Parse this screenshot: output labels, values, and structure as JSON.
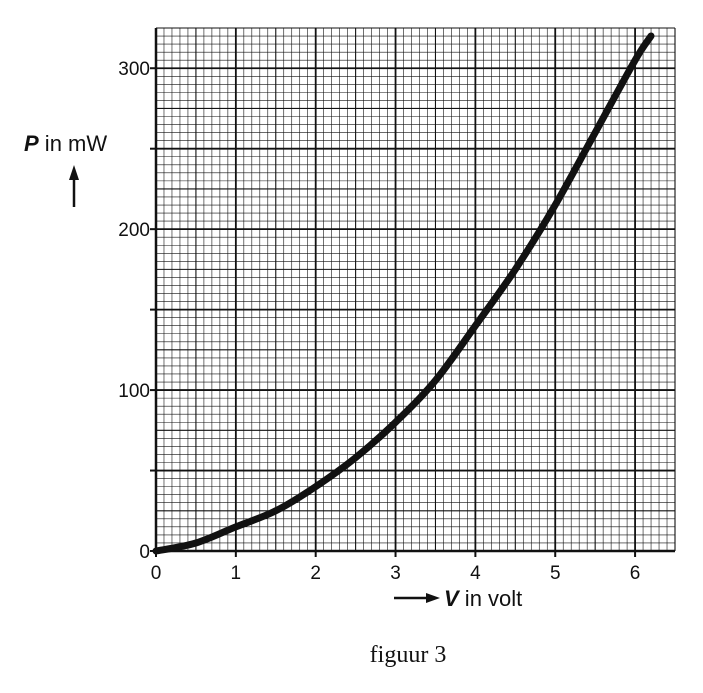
{
  "chart_data": {
    "type": "line",
    "ylabel": {
      "symbol": "P",
      "text": " in mW"
    },
    "xlabel": {
      "symbol": "V",
      "text": " in volt"
    },
    "xlim": [
      0,
      6.5
    ],
    "ylim": [
      0,
      325
    ],
    "xticks": [
      "0",
      "1",
      "2",
      "3",
      "4",
      "5",
      "6"
    ],
    "yticks": [
      "0",
      "100",
      "200",
      "300"
    ],
    "grid": "graph paper (0.1 V and 5 mW minor, 1 V and 50 mW major)",
    "series": [
      {
        "x": [
          0,
          0.5,
          1,
          1.5,
          2,
          2.5,
          3,
          3.5,
          4,
          4.5,
          5,
          5.5,
          6,
          6.2
        ],
        "y": [
          0,
          5,
          15,
          25,
          40,
          58,
          80,
          106,
          140,
          175,
          215,
          260,
          305,
          320
        ]
      }
    ]
  },
  "caption": "figuur 3",
  "colors": {
    "ink": "#111111",
    "paper": "#ffffff"
  }
}
